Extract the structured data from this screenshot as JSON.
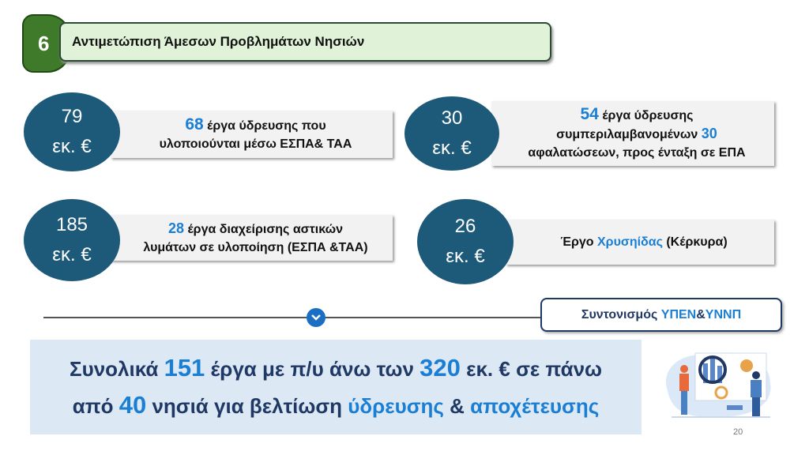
{
  "header": {
    "number": "6",
    "title": "Αντιμετώπιση Άμεσων Προβλημάτων Νησιών",
    "color": "#3f7a2b"
  },
  "cards": [
    {
      "amount": "79",
      "unit": "εκ. €",
      "highlight": "68",
      "text_a": " έργα ύδρευσης που",
      "text_b": "υλοποιούνται μέσω ΕΣΠΑ& ΤΑΑ"
    },
    {
      "amount": "30",
      "unit": "εκ. €",
      "highlight": "54",
      "text_a": " έργα ύδρευσης",
      "text_b": "συμπεριλαμβανομένων ",
      "highlight2": "30",
      "text_c": "αφαλατώσεων,  προς ένταξη σε ΕΠΑ"
    },
    {
      "amount": "185",
      "unit": "εκ. €",
      "highlight": "28",
      "text_a": " έργα διαχείρισης αστικών",
      "text_b": "λυμάτων σε υλοποίηση (ΕΣΠΑ &ΤΑΑ)"
    },
    {
      "amount": "26",
      "unit": "εκ. €",
      "text_a": "Έργο ",
      "highlight": "Χρυσηίδας",
      "text_b": " (Κέρκυρα)"
    }
  ],
  "coordination": {
    "text_a": "Συντονισμός ",
    "highlight": "ΥΠΕΝ",
    "text_b": " & ",
    "highlight2": "ΥΝΝΠ"
  },
  "summary": {
    "l1a": "Συνολικά ",
    "n1": "151",
    "l1b": " έργα με π/υ άνω των ",
    "n2": "320",
    "l1c": " εκ. € σε πάνω",
    "l2a": "από ",
    "n3": "40",
    "l2b": " νησιά για βελτίωση ",
    "w1": "ύδρευσης",
    "l2c": " & ",
    "w2": "αποχέτευσης"
  },
  "page_number": "20",
  "colors": {
    "circle": "#1d5a7a",
    "accent": "#1a7fd4",
    "navy": "#1f3864"
  }
}
